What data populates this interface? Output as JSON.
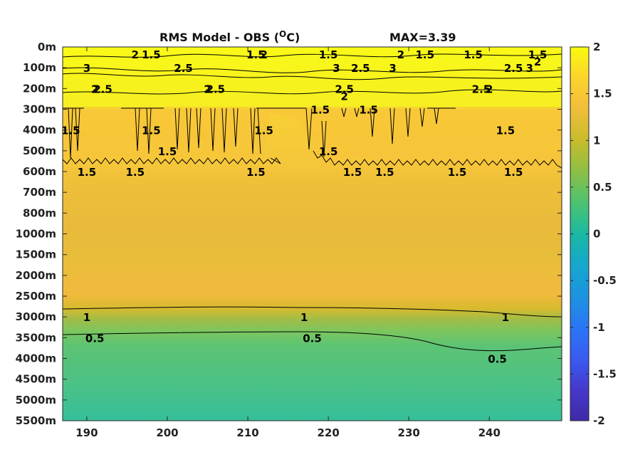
{
  "chart_data": {
    "type": "heatmap",
    "title": "RMS Model - OBS (",
    "title_super": "O",
    "title_tail": "C)",
    "max_label": "MAX=3.39",
    "x_ticks": [
      190,
      200,
      210,
      220,
      230,
      240
    ],
    "xlim": [
      187,
      249
    ],
    "y_ticks": [
      "0m",
      "100m",
      "200m",
      "300m",
      "400m",
      "500m",
      "600m",
      "700m",
      "800m",
      "1000m",
      "1500m",
      "2000m",
      "2500m",
      "3000m",
      "3500m",
      "4000m",
      "4500m",
      "5000m",
      "5500m"
    ],
    "colorbar_ticks": [
      "2",
      "1.5",
      "1",
      "0.5",
      "0",
      "-0.5",
      "-1",
      "-1.5",
      "-2"
    ],
    "clim": [
      -2,
      2
    ],
    "colormap": "parula",
    "field": [
      {
        "depth": "0m",
        "value": 2.0
      },
      {
        "depth": "100m",
        "value": 2.5
      },
      {
        "depth": "200m",
        "value": 2.0
      },
      {
        "depth": "300m",
        "value": 1.5
      },
      {
        "depth": "400m",
        "value": 1.5
      },
      {
        "depth": "500m",
        "value": 1.5
      },
      {
        "depth": "600m",
        "value": 1.35
      },
      {
        "depth": "700m",
        "value": 1.3
      },
      {
        "depth": "800m",
        "value": 1.25
      },
      {
        "depth": "1000m",
        "value": 1.2
      },
      {
        "depth": "1500m",
        "value": 1.25
      },
      {
        "depth": "2000m",
        "value": 1.25
      },
      {
        "depth": "2500m",
        "value": 1.3
      },
      {
        "depth": "3000m",
        "value": 0.95
      },
      {
        "depth": "3500m",
        "value": 0.45
      },
      {
        "depth": "4000m",
        "value": 0.4
      },
      {
        "depth": "4500m",
        "value": 0.35
      },
      {
        "depth": "5000m",
        "value": 0.3
      },
      {
        "depth": "5500m",
        "value": 0.25
      }
    ],
    "contour_labels": [
      {
        "text": "2",
        "x": 196,
        "depth": "0m"
      },
      {
        "text": "1.5",
        "x": 198,
        "depth": "0m"
      },
      {
        "text": "1.5",
        "x": 211,
        "depth": "0m"
      },
      {
        "text": "2",
        "x": 212,
        "depth": "0m"
      },
      {
        "text": "1.5",
        "x": 220,
        "depth": "0m"
      },
      {
        "text": "2",
        "x": 229,
        "depth": "0m"
      },
      {
        "text": "1.5",
        "x": 232,
        "depth": "0m"
      },
      {
        "text": "1.5",
        "x": 238,
        "depth": "0m"
      },
      {
        "text": "1.5",
        "x": 246,
        "depth": "0m"
      },
      {
        "text": "2",
        "x": 246,
        "depth": "0m"
      },
      {
        "text": "2.5",
        "x": 202,
        "depth": "100m"
      },
      {
        "text": "2.5",
        "x": 224,
        "depth": "100m"
      },
      {
        "text": "3",
        "x": 190,
        "depth": "100m"
      },
      {
        "text": "3",
        "x": 221,
        "depth": "100m"
      },
      {
        "text": "3",
        "x": 228,
        "depth": "100m"
      },
      {
        "text": "2.5",
        "x": 243,
        "depth": "100m"
      },
      {
        "text": "3",
        "x": 245,
        "depth": "100m"
      },
      {
        "text": "2.5",
        "x": 192,
        "depth": "200m"
      },
      {
        "text": "2.5",
        "x": 206,
        "depth": "200m"
      },
      {
        "text": "2.5",
        "x": 222,
        "depth": "200m"
      },
      {
        "text": "2.5",
        "x": 239,
        "depth": "200m"
      },
      {
        "text": "2",
        "x": 191,
        "depth": "200m"
      },
      {
        "text": "2",
        "x": 205,
        "depth": "200m"
      },
      {
        "text": "2",
        "x": 222,
        "depth": "200m"
      },
      {
        "text": "2",
        "x": 240,
        "depth": "200m"
      },
      {
        "text": "1.5",
        "x": 188,
        "depth": "400m"
      },
      {
        "text": "1.5",
        "x": 198,
        "depth": "400m"
      },
      {
        "text": "1.5",
        "x": 200,
        "depth": "500m"
      },
      {
        "text": "1.5",
        "x": 212,
        "depth": "400m"
      },
      {
        "text": "1.5",
        "x": 219,
        "depth": "300m"
      },
      {
        "text": "1.5",
        "x": 225,
        "depth": "300m"
      },
      {
        "text": "1.5",
        "x": 242,
        "depth": "400m"
      },
      {
        "text": "1.5",
        "x": 190,
        "depth": "600m"
      },
      {
        "text": "1.5",
        "x": 196,
        "depth": "600m"
      },
      {
        "text": "1.5",
        "x": 211,
        "depth": "600m"
      },
      {
        "text": "1.5",
        "x": 220,
        "depth": "500m"
      },
      {
        "text": "1.5",
        "x": 223,
        "depth": "600m"
      },
      {
        "text": "1.5",
        "x": 227,
        "depth": "600m"
      },
      {
        "text": "1.5",
        "x": 236,
        "depth": "600m"
      },
      {
        "text": "1.5",
        "x": 243,
        "depth": "600m"
      },
      {
        "text": "1",
        "x": 190,
        "depth": "3000m"
      },
      {
        "text": "1",
        "x": 217,
        "depth": "3000m"
      },
      {
        "text": "1",
        "x": 242,
        "depth": "3000m"
      },
      {
        "text": "0.5",
        "x": 191,
        "depth": "3500m"
      },
      {
        "text": "0.5",
        "x": 218,
        "depth": "3500m"
      },
      {
        "text": "0.5",
        "x": 241,
        "depth": "4000m"
      }
    ]
  }
}
